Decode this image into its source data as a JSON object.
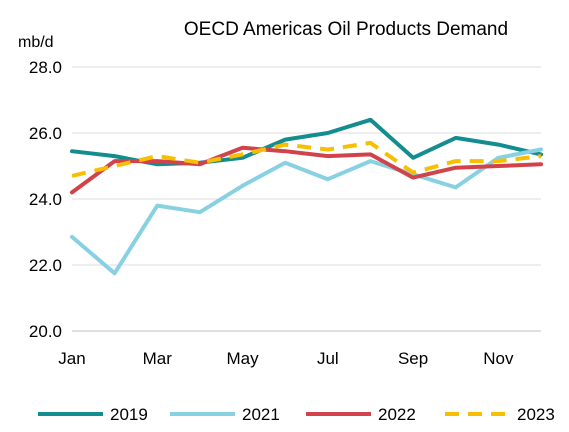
{
  "chart_data": {
    "type": "line",
    "title": "OECD Americas Oil Products Demand",
    "ylabel": "mb/d",
    "xlabel": "",
    "x": [
      "Jan",
      "Feb",
      "Mar",
      "Apr",
      "May",
      "Jun",
      "Jul",
      "Aug",
      "Sep",
      "Oct",
      "Nov",
      "Dec"
    ],
    "x_tick_labels": [
      "Jan",
      "Mar",
      "May",
      "Jul",
      "Sep",
      "Nov"
    ],
    "ylim": [
      20.0,
      28.0
    ],
    "y_ticks": [
      "20.0",
      "22.0",
      "24.0",
      "26.0",
      "28.0"
    ],
    "grid": true,
    "legend_position": "bottom",
    "series": [
      {
        "name": "2019",
        "color": "#138d90",
        "dash": false,
        "values": [
          25.45,
          25.3,
          25.05,
          25.1,
          25.25,
          25.8,
          26.0,
          26.4,
          25.25,
          25.85,
          25.65,
          25.35
        ]
      },
      {
        "name": "2021",
        "color": "#88d1e2",
        "dash": false,
        "values": [
          22.85,
          21.75,
          23.8,
          23.6,
          24.4,
          25.1,
          24.6,
          25.15,
          24.75,
          24.35,
          25.25,
          25.5
        ]
      },
      {
        "name": "2022",
        "color": "#d2424a",
        "dash": false,
        "values": [
          24.2,
          25.15,
          25.15,
          25.05,
          25.55,
          25.45,
          25.3,
          25.35,
          24.65,
          24.95,
          25.0,
          25.05
        ]
      },
      {
        "name": "2023",
        "color": "#f7bf00",
        "dash": true,
        "values": [
          24.7,
          25.0,
          25.3,
          25.1,
          25.35,
          25.65,
          25.5,
          25.7,
          24.8,
          25.15,
          25.15,
          25.3
        ]
      }
    ]
  }
}
